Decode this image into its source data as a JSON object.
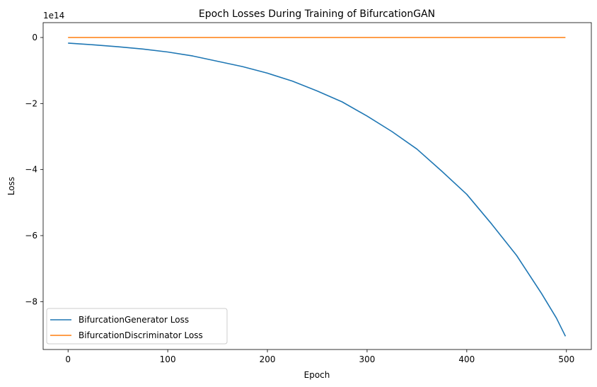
{
  "chart_data": {
    "type": "line",
    "title": "Epoch Losses During Training of BifurcationGAN",
    "xlabel": "Epoch",
    "ylabel": "Loss",
    "y_scale_label": "1e14",
    "xlim": [
      -25,
      525
    ],
    "ylim": [
      -9.45,
      0.45
    ],
    "y_unit_multiplier": 100000000000000.0,
    "x_ticks": [
      0,
      100,
      200,
      300,
      400,
      500
    ],
    "y_ticks": [
      0,
      -2,
      -4,
      -6,
      -8
    ],
    "y_tick_labels": [
      "0",
      "−2",
      "−4",
      "−6",
      "−8"
    ],
    "grid": false,
    "legend_position": "lower-left",
    "series": [
      {
        "name": "BifurcationGenerator Loss",
        "color": "#1f77b4",
        "x": [
          0,
          25,
          50,
          75,
          100,
          125,
          150,
          175,
          200,
          225,
          250,
          275,
          300,
          325,
          350,
          375,
          400,
          425,
          450,
          475,
          490,
          499
        ],
        "y": [
          -0.17,
          -0.22,
          -0.28,
          -0.35,
          -0.44,
          -0.56,
          -0.72,
          -0.88,
          -1.08,
          -1.32,
          -1.62,
          -1.95,
          -2.38,
          -2.85,
          -3.38,
          -4.05,
          -4.75,
          -5.65,
          -6.6,
          -7.75,
          -8.5,
          -9.05
        ]
      },
      {
        "name": "BifurcationDiscriminator Loss",
        "color": "#ff7f0e",
        "x": [
          0,
          499
        ],
        "y": [
          0,
          0
        ]
      }
    ]
  }
}
